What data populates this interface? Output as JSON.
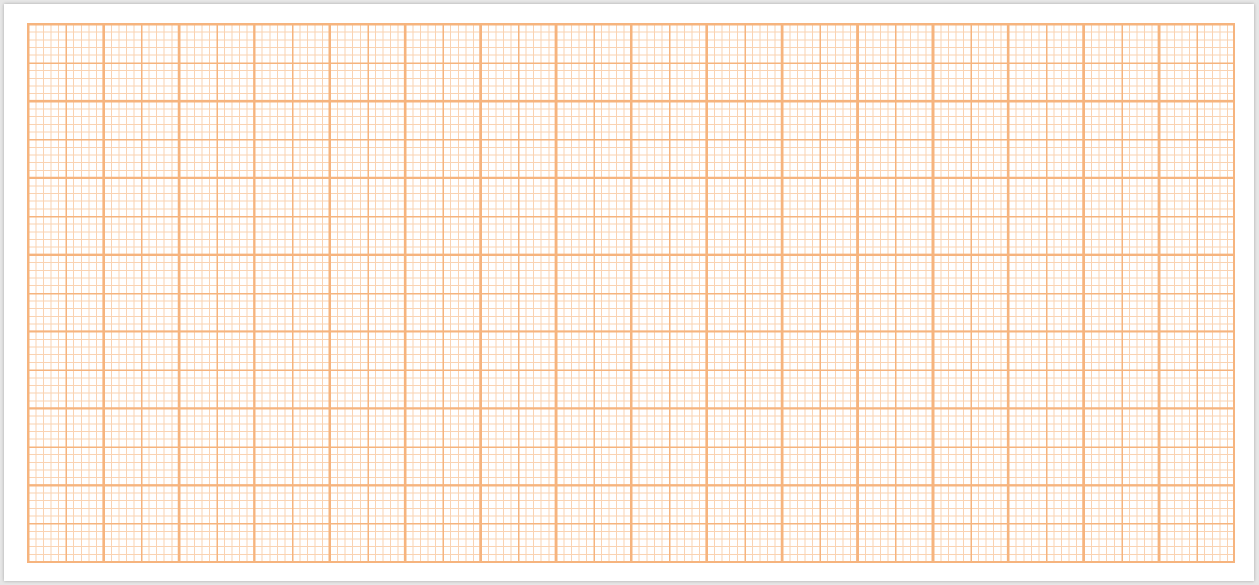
{
  "sheet": {
    "paper_color": "#ffffff",
    "background_color": "#e6e6e6"
  },
  "grid": {
    "line_color": "#f6b47e",
    "minor_line_color": "#fad3b2",
    "major_columns": 16,
    "major_rows": 7,
    "medium_per_major": 2,
    "minor_per_medium": 5
  }
}
